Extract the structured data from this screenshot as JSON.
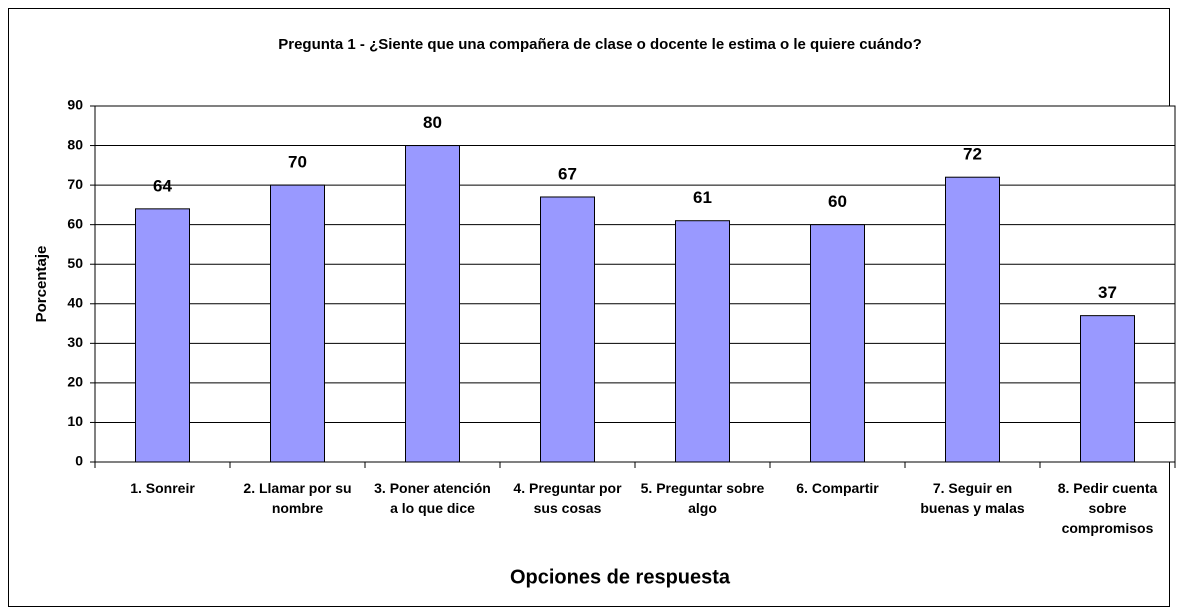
{
  "chart_data": {
    "type": "bar",
    "title": "Pregunta 1 - ¿Siente que una compañera de clase o docente le estima o le quiere cuándo?",
    "x_label": "Opciones de respuesta",
    "y_label": "Porcentaje",
    "categories": [
      "1. Sonreir",
      "2. Llamar por su nombre",
      "3. Poner atención a lo que dice",
      "4. Preguntar por sus cosas",
      "5. Preguntar sobre algo",
      "6. Compartir",
      "7. Seguir en buenas y malas",
      "8. Pedir cuenta sobre compromisos"
    ],
    "values": [
      64,
      70,
      80,
      67,
      61,
      60,
      72,
      37
    ],
    "color": "#9999ff",
    "ylim": [
      0,
      90
    ],
    "yticks": [
      0,
      10,
      20,
      30,
      40,
      50,
      60,
      70,
      80,
      90
    ],
    "grid": true
  }
}
